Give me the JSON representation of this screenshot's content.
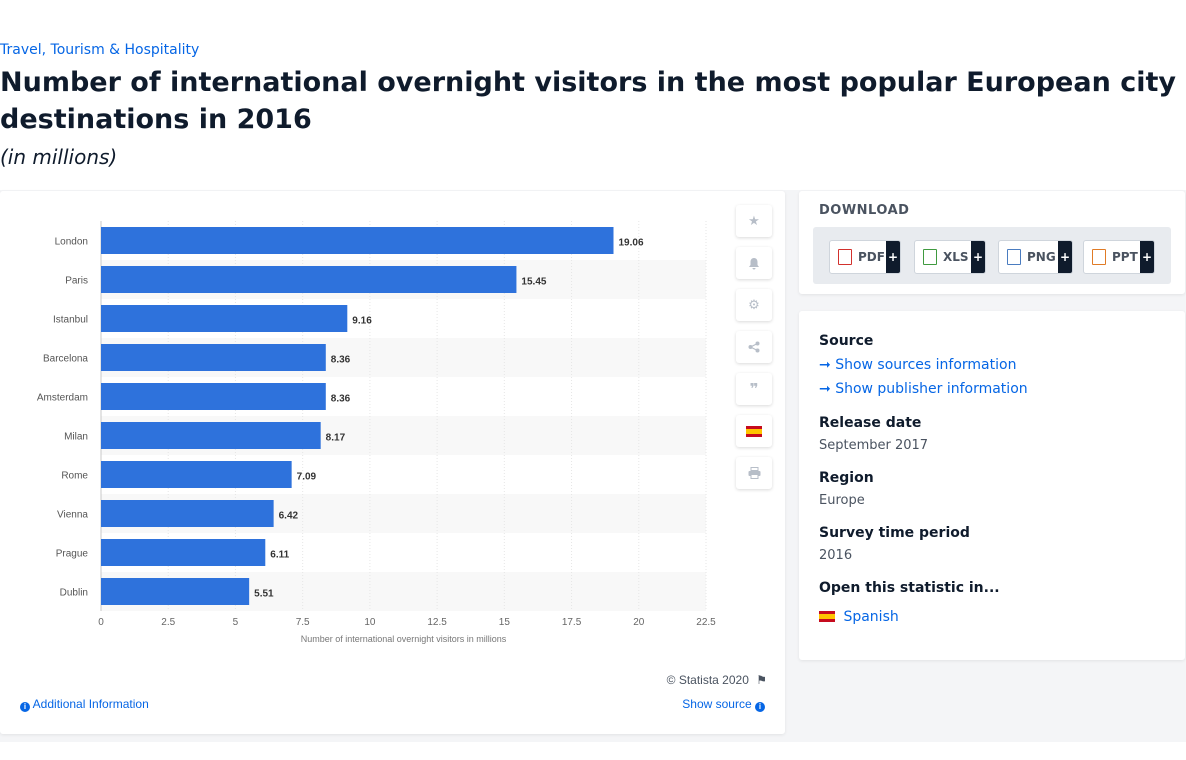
{
  "breadcrumb": "Travel, Tourism & Hospitality",
  "title": "Number of international overnight visitors in the most popular European city destinations in 2016",
  "subtitle": "(in millions)",
  "chart_data": {
    "type": "bar",
    "orientation": "horizontal",
    "categories": [
      "London",
      "Paris",
      "Istanbul",
      "Barcelona",
      "Amsterdam",
      "Milan",
      "Rome",
      "Vienna",
      "Prague",
      "Dublin"
    ],
    "values": [
      19.06,
      15.45,
      9.16,
      8.36,
      8.36,
      8.17,
      7.09,
      6.42,
      6.11,
      5.51
    ],
    "value_labels": [
      "19.06",
      "15.45",
      "9.16",
      "8.36",
      "8.36",
      "8.17",
      "7.09",
      "6.42",
      "6.11",
      "5.51"
    ],
    "xlabel": "Number of international overnight visitors in millions",
    "xlim": [
      0,
      22.5
    ],
    "xticks": [
      "0",
      "2.5",
      "5",
      "7.5",
      "10",
      "12.5",
      "15",
      "17.5",
      "20",
      "22.5"
    ],
    "bar_color": "#2e72dc",
    "grid": true
  },
  "chart_footer": {
    "copyright": "© Statista 2020",
    "additional_info": "Additional Information",
    "show_source": "Show source"
  },
  "toolbar": {
    "icons": [
      "star-icon",
      "bell-icon",
      "gear-icon",
      "share-icon",
      "quote-icon",
      "spanish-flag-icon",
      "print-icon"
    ]
  },
  "download": {
    "title": "DOWNLOAD",
    "buttons": [
      {
        "label": "PDF",
        "plus": "+",
        "color": "#d2312d"
      },
      {
        "label": "XLS",
        "plus": "+",
        "color": "#3f9a3f"
      },
      {
        "label": "PNG",
        "plus": "+",
        "color": "#4a7cc0"
      },
      {
        "label": "PPT",
        "plus": "+",
        "color": "#e07b26"
      }
    ]
  },
  "meta": {
    "source_label": "Source",
    "show_sources": "Show sources information",
    "show_publisher": "Show publisher information",
    "release_label": "Release date",
    "release_value": "September 2017",
    "region_label": "Region",
    "region_value": "Europe",
    "survey_label": "Survey time period",
    "survey_value": "2016",
    "open_label": "Open this statistic in...",
    "open_language": "Spanish"
  }
}
